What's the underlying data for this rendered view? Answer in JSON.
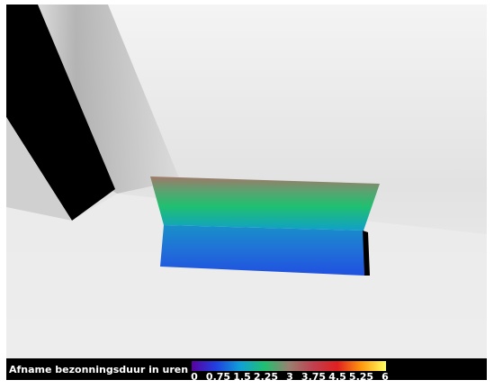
{
  "legend": {
    "title": "Afname bezonningsduur in uren",
    "ticks": [
      0,
      0.75,
      1.5,
      2.25,
      3,
      3.75,
      4.5,
      5.25,
      6
    ],
    "colors": [
      "#5a00a0",
      "#2040e0",
      "#10a0d8",
      "#20c070",
      "#9a8070",
      "#c04050",
      "#e02020",
      "#ff9a10",
      "#ffff60"
    ]
  }
}
